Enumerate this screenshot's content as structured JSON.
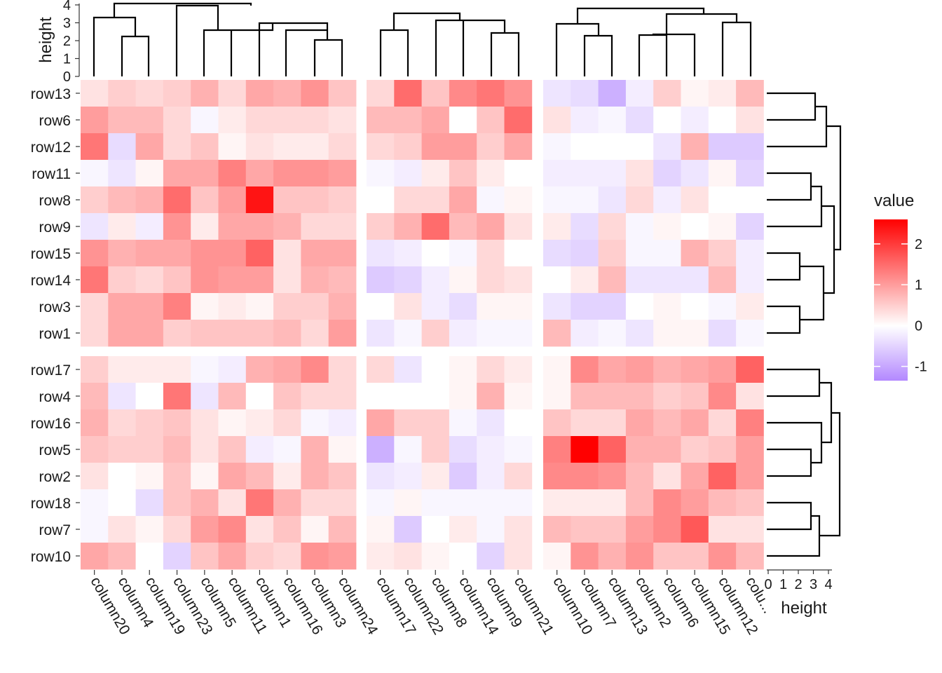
{
  "chart_data": {
    "type": "heatmap",
    "legend": {
      "title": "value",
      "ticks": [
        2,
        1,
        0,
        -1
      ],
      "range": [
        -1.35,
        2.6
      ],
      "colors": {
        "low": "#b388ff",
        "mid": "#ffffff",
        "high": "#ff0000"
      },
      "placement": "right"
    },
    "row_groups": [
      [
        "row13",
        "row6",
        "row12",
        "row11",
        "row8",
        "row9",
        "row15",
        "row14",
        "row3",
        "row1"
      ],
      [
        "row17",
        "row4",
        "row16",
        "row5",
        "row2",
        "row18",
        "row7",
        "row10"
      ]
    ],
    "column_groups": [
      [
        "column20",
        "column4",
        "column19",
        "column23",
        "column5",
        "column11",
        "column1",
        "column16",
        "column3",
        "column24"
      ],
      [
        "column17",
        "column22",
        "column8",
        "column14",
        "column9",
        "column21"
      ],
      [
        "column10",
        "column7",
        "column13",
        "column2",
        "column6",
        "column15",
        "column12",
        "colu..."
      ]
    ],
    "top_dendrogram": {
      "ylabel": "height",
      "ticks": [
        0,
        1,
        2,
        3,
        4
      ]
    },
    "right_dendrogram": {
      "xlabel": "height",
      "ticks": [
        0,
        1,
        2,
        3,
        4
      ]
    },
    "values": [
      [
        0.3,
        0.5,
        0.4,
        0.5,
        0.8,
        0.4,
        0.9,
        0.8,
        1.1,
        0.6,
        0.4,
        1.5,
        0.6,
        1.2,
        1.4,
        1.1,
        -0.3,
        -0.4,
        -0.9,
        -0.2,
        0.5,
        0.1,
        0.2,
        0.7
      ],
      [
        1.0,
        0.7,
        0.7,
        0.4,
        -0.1,
        0.2,
        0.4,
        0.4,
        0.4,
        0.3,
        0.7,
        0.7,
        0.9,
        0.0,
        0.6,
        1.5,
        0.3,
        -0.2,
        -0.1,
        -0.4,
        0.0,
        -0.2,
        0.0,
        0.3
      ],
      [
        1.4,
        -0.4,
        0.9,
        0.4,
        0.6,
        0.1,
        0.3,
        0.2,
        0.2,
        0.4,
        0.4,
        0.5,
        1.0,
        1.0,
        0.5,
        0.9,
        -0.1,
        0.0,
        0.0,
        0.0,
        -0.3,
        0.8,
        -0.6,
        -0.6
      ],
      [
        -0.1,
        -0.3,
        0.1,
        0.9,
        0.9,
        1.3,
        0.9,
        1.1,
        1.1,
        1.0,
        -0.1,
        -0.2,
        0.2,
        0.6,
        0.2,
        0.0,
        -0.2,
        -0.2,
        -0.2,
        0.3,
        -0.5,
        -0.3,
        0.1,
        -0.5
      ],
      [
        0.5,
        0.7,
        0.8,
        1.5,
        0.6,
        1.0,
        2.4,
        0.6,
        0.6,
        0.5,
        0.0,
        0.4,
        0.4,
        0.9,
        -0.1,
        0.1,
        -0.1,
        -0.1,
        -0.3,
        0.4,
        -0.2,
        0.3,
        0.0,
        0.0
      ],
      [
        -0.3,
        0.2,
        -0.2,
        1.1,
        0.2,
        0.9,
        0.9,
        0.8,
        0.4,
        0.4,
        0.5,
        0.8,
        1.5,
        0.7,
        0.9,
        0.3,
        0.2,
        -0.4,
        0.4,
        -0.1,
        0.1,
        0.0,
        0.1,
        -0.5
      ],
      [
        1.1,
        0.8,
        0.9,
        0.9,
        1.1,
        1.1,
        1.6,
        0.3,
        0.9,
        0.9,
        -0.3,
        -0.2,
        0.0,
        -0.1,
        0.4,
        0.0,
        -0.4,
        -0.5,
        0.5,
        -0.1,
        -0.1,
        0.8,
        0.5,
        -0.2
      ],
      [
        1.4,
        0.5,
        0.4,
        0.6,
        1.1,
        1.0,
        1.0,
        0.3,
        0.8,
        0.7,
        -0.6,
        -0.5,
        -0.2,
        0.1,
        0.4,
        0.3,
        0.0,
        0.2,
        0.7,
        -0.3,
        -0.3,
        -0.3,
        0.7,
        -0.2
      ],
      [
        0.4,
        0.9,
        0.9,
        1.3,
        0.1,
        0.2,
        0.1,
        0.5,
        0.5,
        0.8,
        0.0,
        0.3,
        -0.2,
        -0.4,
        0.1,
        0.1,
        -0.3,
        -0.5,
        -0.5,
        0.0,
        0.1,
        0.0,
        -0.1,
        0.2
      ],
      [
        0.4,
        0.9,
        0.9,
        0.5,
        0.6,
        0.6,
        0.6,
        0.7,
        0.4,
        1.0,
        -0.3,
        -0.1,
        0.5,
        -0.2,
        -0.1,
        -0.1,
        0.7,
        -0.2,
        -0.1,
        -0.3,
        0.1,
        0.1,
        -0.4,
        -0.1
      ],
      [
        0.5,
        0.2,
        0.2,
        0.2,
        -0.1,
        -0.2,
        0.8,
        0.9,
        1.2,
        0.4,
        0.4,
        -0.3,
        0.0,
        0.1,
        0.4,
        0.2,
        0.1,
        1.2,
        0.9,
        1.0,
        0.8,
        0.9,
        1.0,
        1.6
      ],
      [
        0.7,
        -0.3,
        0.0,
        1.4,
        -0.3,
        0.7,
        0.0,
        0.6,
        0.4,
        0.4,
        0.0,
        0.0,
        0.0,
        0.1,
        0.8,
        0.1,
        0.1,
        0.7,
        0.7,
        0.7,
        0.5,
        0.6,
        1.2,
        0.3
      ],
      [
        0.8,
        0.4,
        0.5,
        0.6,
        0.3,
        0.1,
        0.2,
        0.4,
        -0.1,
        -0.2,
        0.9,
        0.5,
        0.5,
        -0.1,
        -0.3,
        0.0,
        0.6,
        0.4,
        0.4,
        0.9,
        0.7,
        0.9,
        0.4,
        1.3
      ],
      [
        0.6,
        0.5,
        0.5,
        0.7,
        0.3,
        0.6,
        -0.2,
        -0.1,
        0.8,
        0.1,
        -0.9,
        -0.1,
        0.5,
        -0.4,
        -0.2,
        -0.1,
        1.3,
        2.6,
        1.6,
        0.8,
        0.8,
        0.5,
        0.6,
        1.0
      ],
      [
        0.3,
        0.0,
        0.1,
        0.6,
        0.1,
        0.9,
        0.7,
        0.2,
        0.8,
        0.6,
        -0.3,
        -0.2,
        0.2,
        -0.6,
        -0.2,
        0.4,
        1.2,
        1.2,
        1.1,
        0.7,
        0.3,
        0.9,
        1.6,
        1.0
      ],
      [
        -0.1,
        0.0,
        -0.4,
        0.6,
        0.8,
        0.3,
        1.4,
        0.8,
        0.4,
        0.4,
        -0.1,
        0.1,
        -0.1,
        -0.1,
        -0.1,
        -0.1,
        0.2,
        0.2,
        0.2,
        0.7,
        1.2,
        1.0,
        0.7,
        0.6
      ],
      [
        -0.1,
        0.3,
        0.1,
        0.4,
        1.0,
        1.2,
        0.3,
        0.6,
        0.1,
        0.7,
        0.1,
        -0.6,
        0.0,
        0.2,
        -0.1,
        0.3,
        0.7,
        0.6,
        0.6,
        1.0,
        1.2,
        1.7,
        0.3,
        0.3
      ],
      [
        0.9,
        0.7,
        0.0,
        -0.5,
        0.6,
        0.9,
        0.5,
        0.4,
        1.1,
        1.0,
        0.2,
        0.3,
        0.1,
        0.0,
        -0.5,
        0.3,
        0.1,
        1.1,
        0.8,
        1.1,
        0.6,
        0.6,
        1.1,
        0.7
      ]
    ]
  }
}
